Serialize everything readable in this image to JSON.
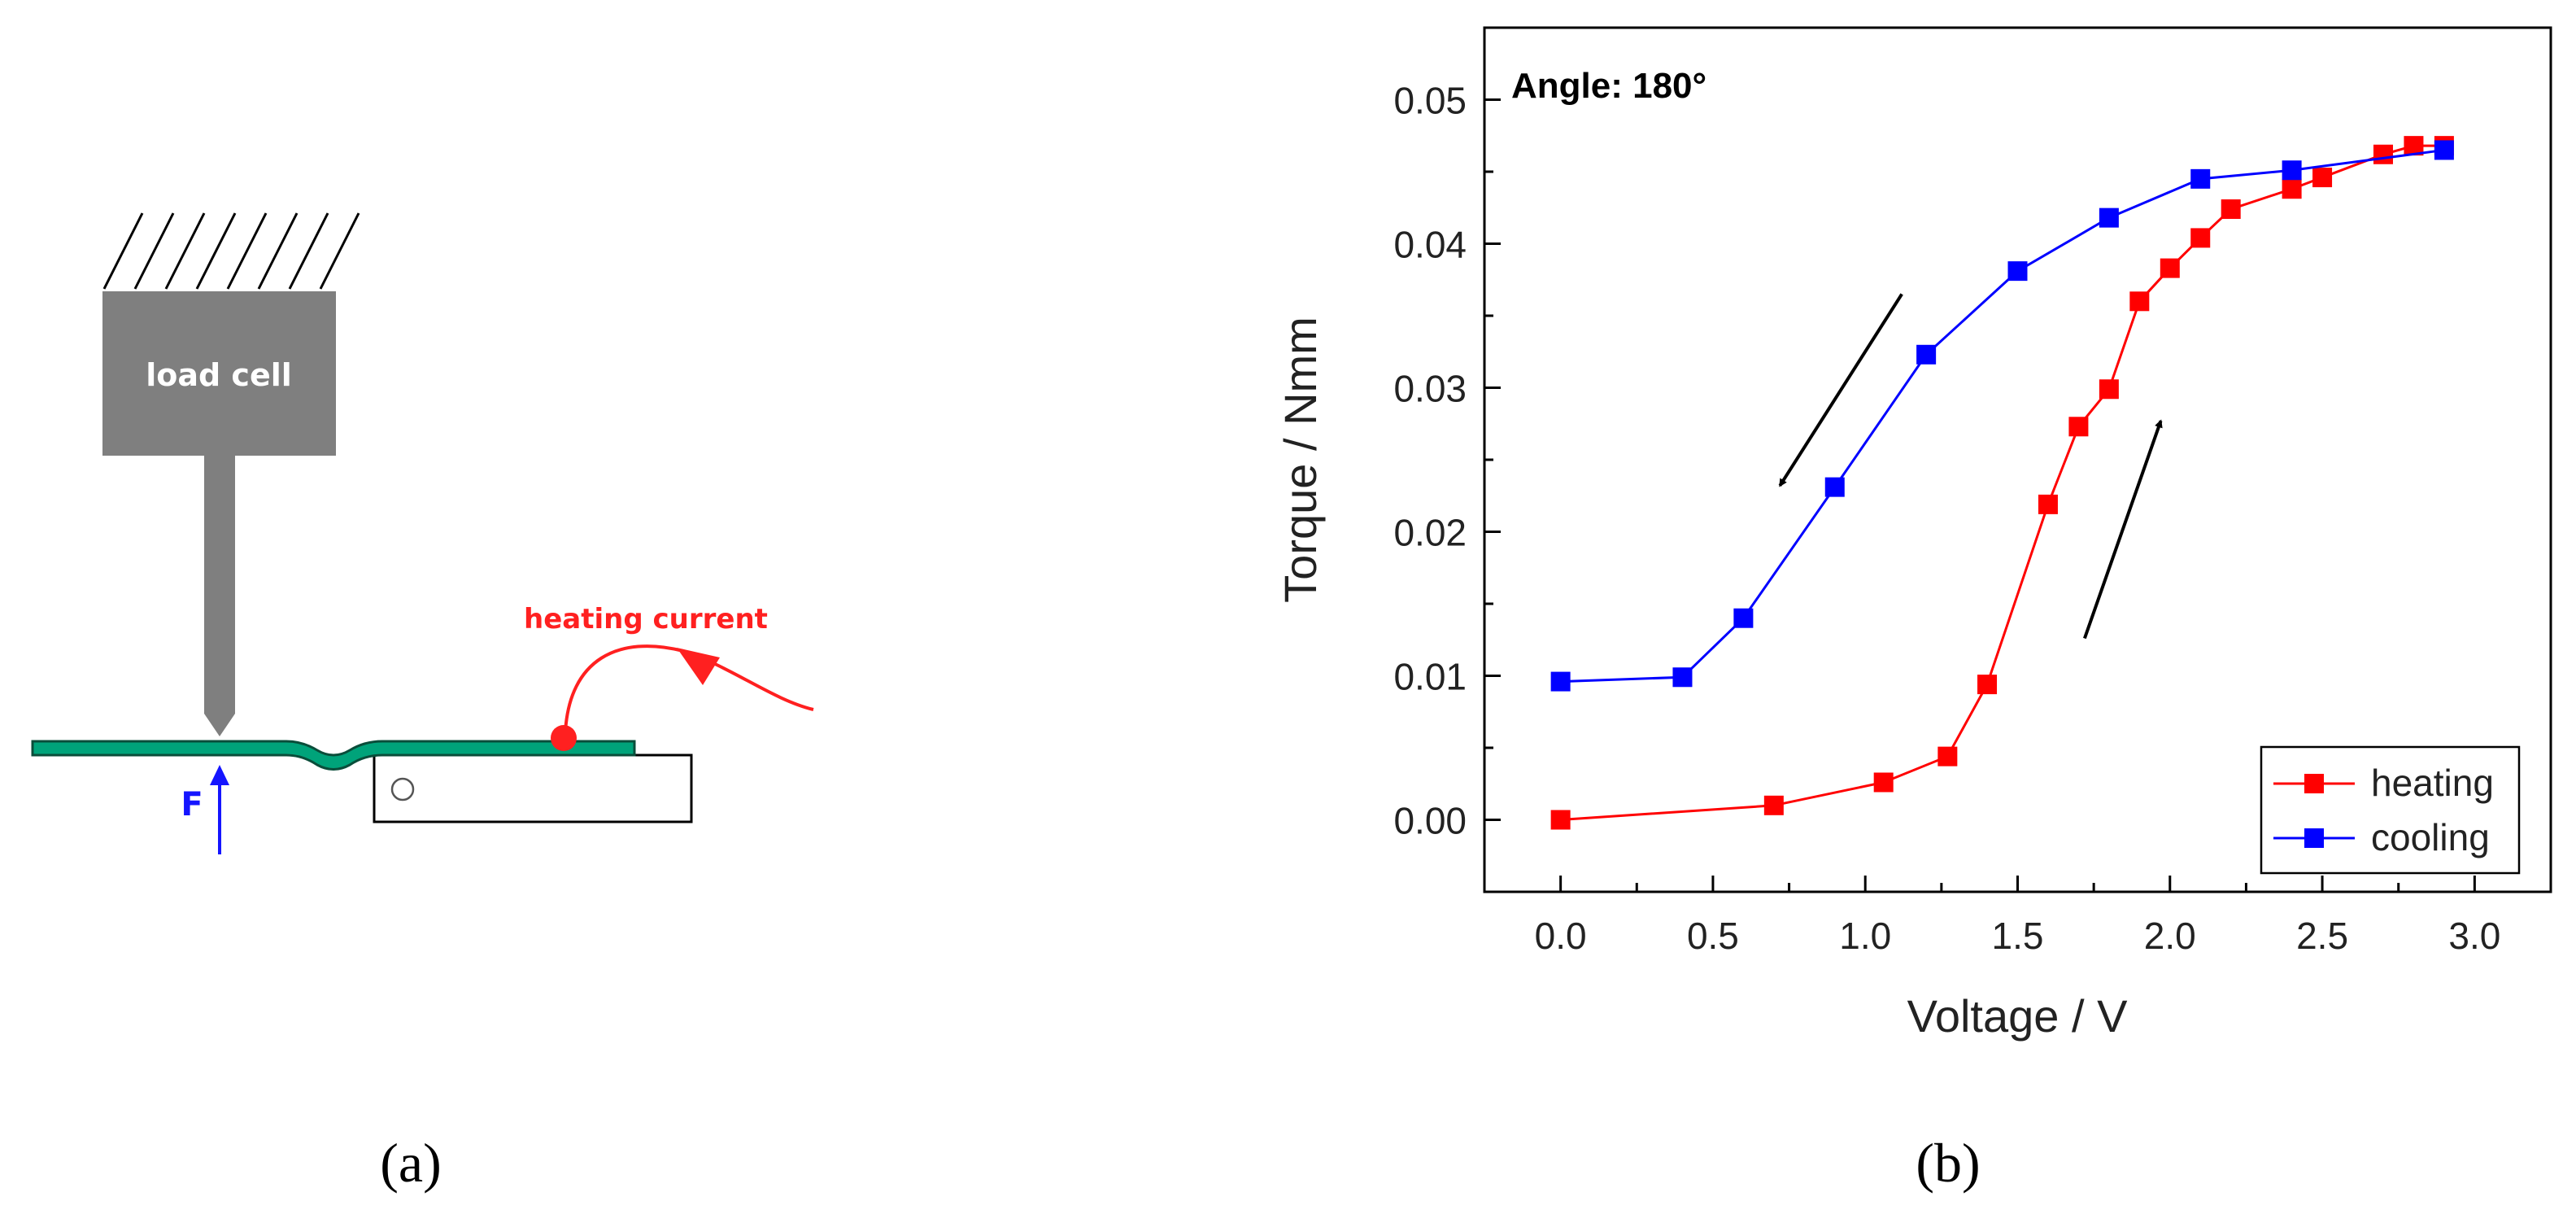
{
  "panel_a": {
    "label": "(a)",
    "load_cell_label": "load cell",
    "heating_current_label": "heating current",
    "force_label": "F",
    "colors": {
      "cell": "#7f7f7f",
      "strip": "#00a37a",
      "current": "#ff2020",
      "force": "#1515ff"
    }
  },
  "panel_b": {
    "label": "(b)"
  },
  "chart_data": {
    "type": "line",
    "title": "",
    "annotation": "Angle: 180°",
    "xlabel": "Voltage / V",
    "ylabel": "Torque / Nmm",
    "xlim": [
      -0.25,
      3.25
    ],
    "ylim": [
      -0.005,
      0.055
    ],
    "xticks": [
      0.0,
      0.5,
      1.0,
      1.5,
      2.0,
      2.5,
      3.0
    ],
    "xtick_labels": [
      "0.0",
      "0.5",
      "1.0",
      "1.5",
      "2.0",
      "2.5",
      "3.0"
    ],
    "yticks": [
      0.0,
      0.01,
      0.02,
      0.03,
      0.04,
      0.05
    ],
    "ytick_labels": [
      "0.00",
      "0.01",
      "0.02",
      "0.03",
      "0.04",
      "0.05"
    ],
    "legend_position": "bottom-right",
    "series": [
      {
        "name": "heating",
        "color": "#ff0000",
        "x": [
          0.0,
          0.7,
          1.06,
          1.27,
          1.4,
          1.6,
          1.7,
          1.8,
          1.9,
          2.0,
          2.1,
          2.2,
          2.4,
          2.5,
          2.7,
          2.8,
          2.9
        ],
        "y": [
          0.0,
          0.001,
          0.0026,
          0.0044,
          0.0094,
          0.0219,
          0.0273,
          0.0299,
          0.036,
          0.0383,
          0.0404,
          0.0424,
          0.0438,
          0.0446,
          0.0462,
          0.0468,
          0.0468
        ]
      },
      {
        "name": "cooling",
        "color": "#0000ff",
        "x": [
          0.0,
          0.4,
          0.6,
          0.9,
          1.2,
          1.5,
          1.8,
          2.1,
          2.4,
          2.9
        ],
        "y": [
          0.0096,
          0.0099,
          0.014,
          0.0231,
          0.0323,
          0.0381,
          0.0418,
          0.0445,
          0.0451,
          0.0465
        ]
      }
    ],
    "arrows": [
      {
        "direction": "down-left",
        "series": "cooling"
      },
      {
        "direction": "up-right",
        "series": "heating"
      }
    ]
  }
}
